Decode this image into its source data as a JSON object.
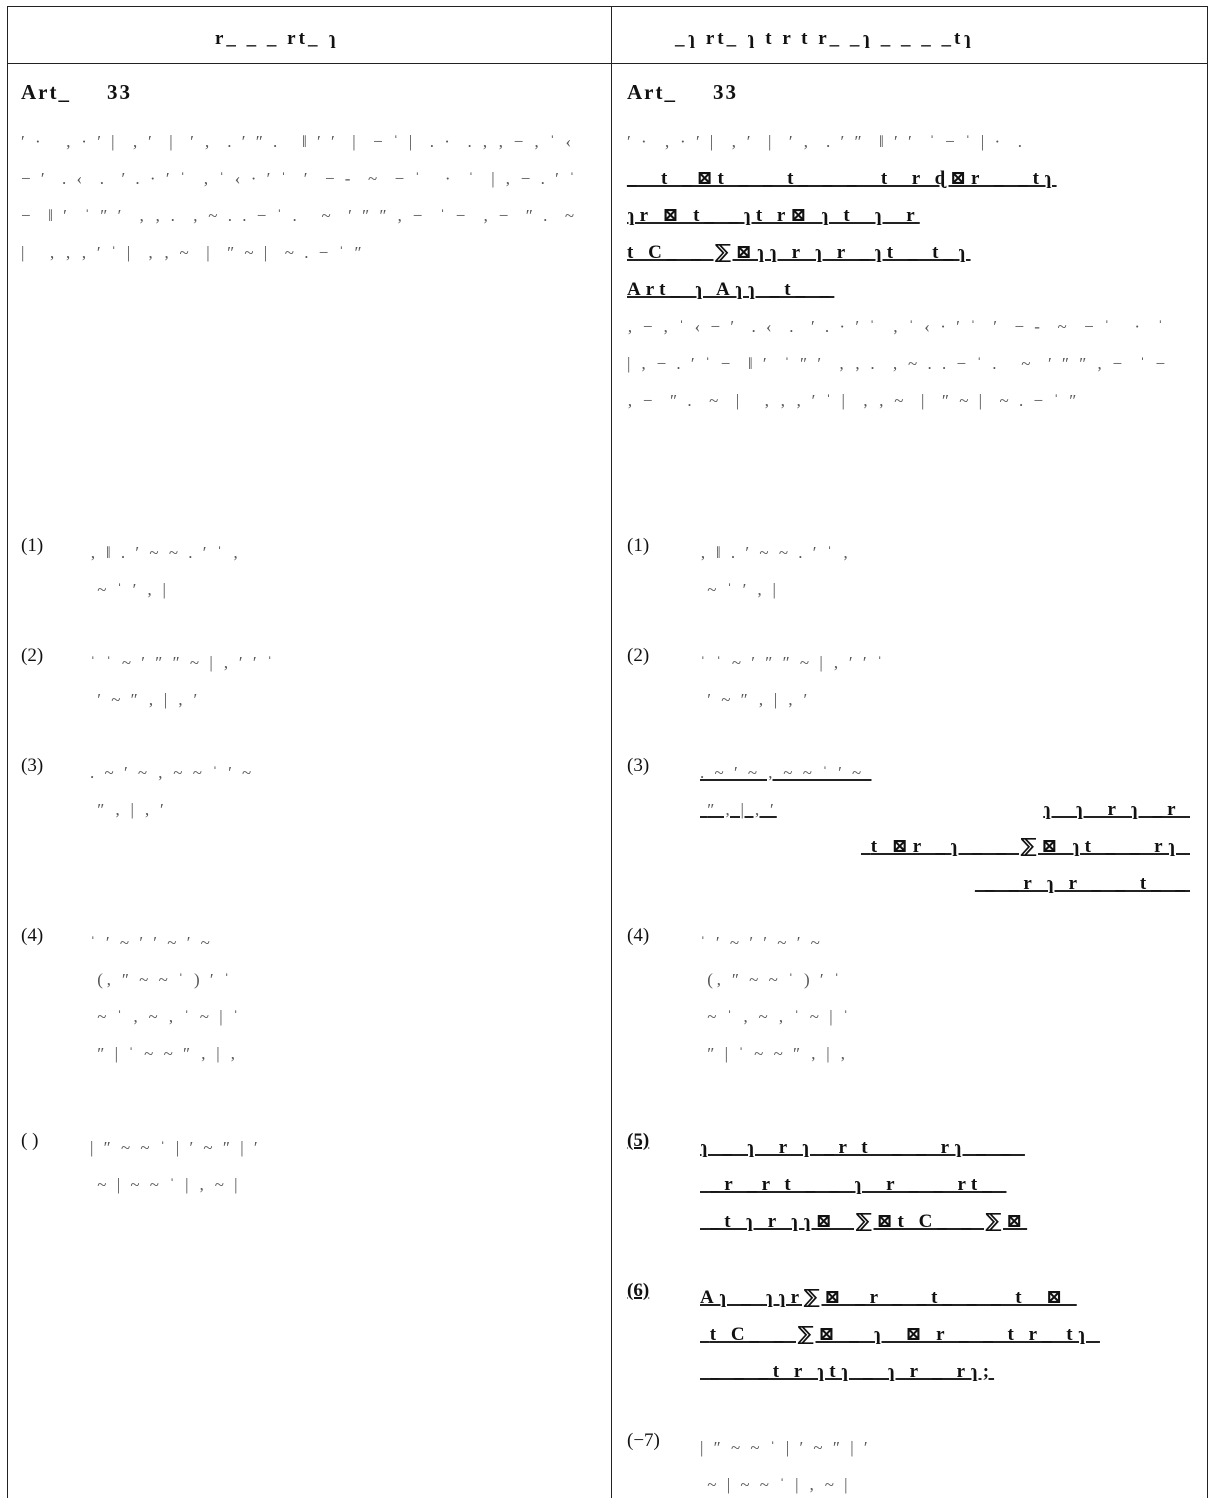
{
  "table": {
    "header_left": "r_ _ _  rt_  ɿ",
    "header_right": "_ɿ  rt_  ɿ t r t  r_ _ɿ  _ _ _ _tɿ"
  },
  "left": {
    "article_label": "Art_",
    "article_num": "33",
    "intro": "′ ·   ‚ · ′ |  ‚ ′  |  ′ ‚  . ′ ″ .   ‖ ′ ′  |  − ˈ |  . ·  . ‚ ‚ − ‚ ˈ ‹ − ′  . ‹  .  ′ . · ′ ˈ  ‚ ˈ ‹ · ′ ˈ  ′  − ‐  ~  − ˈ   ·  ˈ  | ‚ − . ′ ˈ −  ‖ ′  ˈ ″ ′  ‚ ‚ .  ‚ ~ . . − ˈ .   ~  ′ ″ ″ ‚ −  ˈ −  ‚ −  ″ .  ~  |   ‚ ‚ ‚ ′ ˈ |  ‚ ‚ ~  |  ″ ~ |  ~ . − ˈ ″",
    "items": [
      {
        "mark": "(1)",
        "text": "‚ ‖ . ′ ~ ~ . ′ ˈ ‚ \n ~ ˈ ′ ‚ |"
      },
      {
        "mark": "(2)",
        "text": "ˈ ˈ ~ ′ ″ ″ ~ | ‚ ′ ′ ˈ \n ′ ~ ″ ‚ | ‚ ′"
      },
      {
        "mark": "(3)",
        "text": ". ~ ′ ~ ‚ ~ ~ ˈ ′ ~ \n ″ ‚ | ‚ ′"
      },
      {
        "mark": "(4)",
        "text": "ˈ ′ ~ ′ ′ ~ ′ ~ \n (‚ ″ ~ ~ ˈ ) ′ ˈ \n ~ ˈ ‚ ~ ‚ ˈ ~ | ˈ \n ″ | ˈ ~ ~ ″ ‚ | ‚"
      },
      {
        "mark": "( )",
        "text": "| ″ ~ ~ ˈ | ′ ~ ″ | ′ \n ~ | ~ ~ ˈ | ‚ ~ |"
      }
    ]
  },
  "right": {
    "article_label": "Art_",
    "article_num": "33",
    "intro_plain": "′ ·  ‚ · ′ |  ‚ ′  |  ′ ‚  . ′ ″  ‖ ′ ′  ˈ − ˈ | ·  .",
    "intro_bold_1": "_  t _⊠t _ _ t_ _ _  t  r ɖ⊠r _ _tɿ",
    "intro_bold_2": "ɿr ⊠ t_ _ɿt r⊠ ɿ t  ɿ  r",
    "intro_bold_3": "t C_ _ ⅀⊠ɿɿ r ɿ r _ɿt _ t_ɿ",
    "intro_bold_4": "Art_ ɿ Aɿɿ _t_ _",
    "intro_rest": "‚ − ‚ ˈ ‹ − ′  . ‹  .  ′ . · ′ ˈ  ‚ ˈ ‹ · ′ ˈ  ′  − ‐  ~  − ˈ   ·  ˈ  | ‚ − . ′ ˈ −  ‖ ′  ˈ ″ ′  ‚ ‚ .  ‚ ~ . . − ˈ .   ~  ′ ″ ″ ‚ −  ˈ −  ‚ −  ″ .  ~  |   ‚ ‚ ‚ ′ ˈ |  ‚ ‚ ~  |  ″ ~ |  ~ . − ˈ ″",
    "items": [
      {
        "mark": "(1)",
        "text": "‚ ‖ . ′ ~ ~ . ′ ˈ ‚ \n ~ ˈ ′ ‚ |"
      },
      {
        "mark": "(2)",
        "text": "ˈ ˈ ~ ′ ″ ″ ~ | ‚ ′ ′ ˈ \n ′ ~ ″ ‚ | ‚ ′"
      },
      {
        "mark": "(3)",
        "text": ". ~ ′ ~ ‚ ~ ~ ˈ ′ ~ \n ″ ‚ | ‚ ′",
        "bold": "ɿ  ɿ  r ɿ _r \n t ⊠r _ɿ _ _ ⅀⊠ ɿt _ _ rɿ \n _ _r ɿ r _ _ t_ _"
      },
      {
        "mark": "(4)",
        "text": "ˈ ′ ~ ′ ′ ~ ′ ~ \n (‚ ″ ~ ~ ˈ ) ′ ˈ \n ~ ˈ ‚ ~ ‚ ˈ ~ | ˈ \n ″ | ˈ ~ ~ ″ ‚ | ‚"
      },
      {
        "mark": "(5)",
        "bold": "ɿ _ ɿ  r ɿ _r t  _ _ rɿ _ _ \n _r _r t _ _ ɿ  r _ _ rt_ \n _t ɿ r ɿɿ⊠  ⅀⊠t C_ _ ⅀⊠"
      },
      {
        "mark": "(6)",
        "bold": "Aɿ _ ɿɿr⅀⊠ _r _ _t_ _ _ t  ⊠ \n t C_ _ ⅀⊠ _ ɿ  ⊠ r _ _ t r_ tɿ \n _ _ _t r ɿtɿ _ ɿ r _ rɿ;"
      },
      {
        "mark": "(−7)",
        "text": "| ″ ~ ~ ˈ | ′ ~ ″ | ′ \n ~ | ~ ~ ˈ | ‚ ~ |"
      }
    ]
  }
}
